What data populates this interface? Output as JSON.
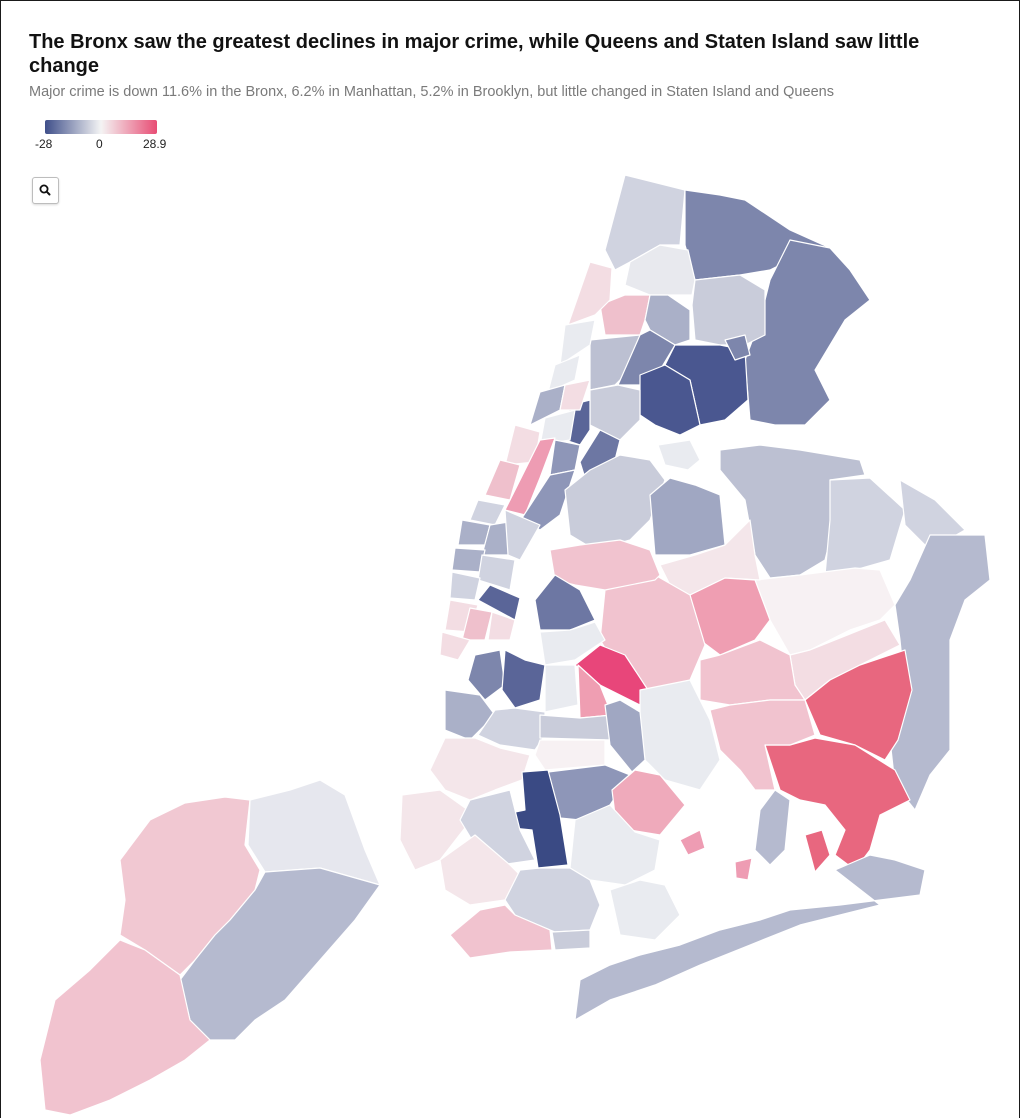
{
  "header": {
    "title": "The Bronx saw the greatest declines in major crime, while Queens and Staten Island saw little change",
    "subtitle": "Major crime is down 11.6% in the Bronx, 6.2% in Manhattan, 5.2% in Brooklyn, but little changed in Staten Island and Queens"
  },
  "legend": {
    "min_label": "-28",
    "mid_label": "0",
    "max_label": "28.9",
    "min_value": -28,
    "mid_value": 0,
    "max_value": 28.9,
    "colors": {
      "negative": "#3f4f8a",
      "neutral": "#f4f4f4",
      "positive": "#e84d74"
    }
  },
  "controls": {
    "zoom_icon": "search-icon"
  }
}
